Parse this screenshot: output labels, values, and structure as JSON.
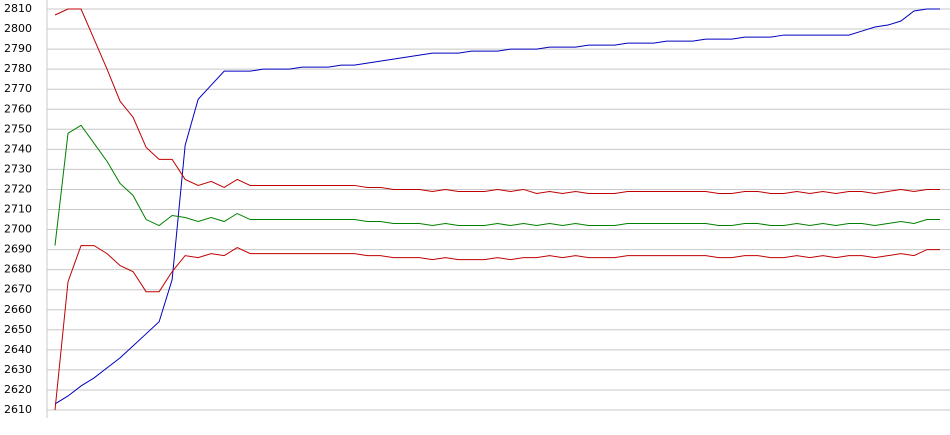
{
  "chart_data": {
    "type": "line",
    "categories": [
      null,
      null,
      null,
      null,
      null,
      null,
      null,
      null,
      null,
      null,
      null,
      null,
      null,
      null,
      null,
      null,
      null,
      null,
      null,
      null,
      null,
      null,
      null,
      null,
      null,
      null,
      null,
      null,
      null,
      null,
      null,
      null,
      null,
      null,
      null,
      null,
      null,
      null,
      null,
      null,
      null,
      null,
      null,
      null,
      null,
      null,
      null,
      null,
      null,
      null,
      null,
      null,
      null,
      null,
      null,
      null,
      null,
      null,
      null,
      null,
      null,
      null,
      null,
      null,
      null,
      null,
      null,
      null,
      null
    ],
    "series": [
      {
        "color": "#0000c0",
        "values": [
          2613,
          2617,
          2622,
          2626,
          2631,
          2636,
          2642,
          2648,
          2654,
          2675,
          2742,
          2765,
          2772,
          2779,
          2779,
          2779,
          2780,
          2780,
          2780,
          2781,
          2781,
          2781,
          2782,
          2782,
          2783,
          2784,
          2785,
          2786,
          2787,
          2788,
          2788,
          2788,
          2789,
          2789,
          2789,
          2790,
          2790,
          2790,
          2791,
          2791,
          2791,
          2792,
          2792,
          2792,
          2793,
          2793,
          2793,
          2794,
          2794,
          2794,
          2795,
          2795,
          2795,
          2796,
          2796,
          2796,
          2797,
          2797,
          2797,
          2797,
          2797,
          2797,
          2799,
          2801,
          2802,
          2804,
          2809,
          2810,
          2810
        ]
      },
      {
        "color": "#c00000",
        "values": [
          2807,
          2810,
          2810,
          2795,
          2780,
          2764,
          2756,
          2741,
          2735,
          2735,
          2725,
          2722,
          2724,
          2721,
          2725,
          2722,
          2722,
          2722,
          2722,
          2722,
          2722,
          2722,
          2722,
          2722,
          2721,
          2721,
          2720,
          2720,
          2720,
          2719,
          2720,
          2719,
          2719,
          2719,
          2720,
          2719,
          2720,
          2718,
          2719,
          2718,
          2719,
          2718,
          2718,
          2718,
          2719,
          2719,
          2719,
          2719,
          2719,
          2719,
          2719,
          2718,
          2718,
          2719,
          2719,
          2718,
          2718,
          2719,
          2718,
          2719,
          2718,
          2719,
          2719,
          2718,
          2719,
          2720,
          2719,
          2720,
          2720
        ]
      },
      {
        "color": "#008000",
        "values": [
          2692,
          2748,
          2752,
          2743,
          2734,
          2723,
          2717,
          2705,
          2702,
          2707,
          2706,
          2704,
          2706,
          2704,
          2708,
          2705,
          2705,
          2705,
          2705,
          2705,
          2705,
          2705,
          2705,
          2705,
          2704,
          2704,
          2703,
          2703,
          2703,
          2702,
          2703,
          2702,
          2702,
          2702,
          2703,
          2702,
          2703,
          2702,
          2703,
          2702,
          2703,
          2702,
          2702,
          2702,
          2703,
          2703,
          2703,
          2703,
          2703,
          2703,
          2703,
          2702,
          2702,
          2703,
          2703,
          2702,
          2702,
          2703,
          2702,
          2703,
          2702,
          2703,
          2703,
          2702,
          2703,
          2704,
          2703,
          2705,
          2705
        ]
      },
      {
        "color": "#c00000",
        "values": [
          2610,
          2674,
          2692,
          2692,
          2688,
          2682,
          2679,
          2669,
          2669,
          2679,
          2687,
          2686,
          2688,
          2687,
          2691,
          2688,
          2688,
          2688,
          2688,
          2688,
          2688,
          2688,
          2688,
          2688,
          2687,
          2687,
          2686,
          2686,
          2686,
          2685,
          2686,
          2685,
          2685,
          2685,
          2686,
          2685,
          2686,
          2686,
          2687,
          2686,
          2687,
          2686,
          2686,
          2686,
          2687,
          2687,
          2687,
          2687,
          2687,
          2687,
          2687,
          2686,
          2686,
          2687,
          2687,
          2686,
          2686,
          2687,
          2686,
          2687,
          2686,
          2687,
          2687,
          2686,
          2687,
          2688,
          2687,
          2690,
          2690
        ]
      }
    ],
    "ylim": [
      2610,
      2810
    ],
    "yticks": [
      2610,
      2620,
      2630,
      2640,
      2650,
      2660,
      2670,
      2680,
      2690,
      2700,
      2710,
      2720,
      2730,
      2740,
      2750,
      2760,
      2770,
      2780,
      2790,
      2800,
      2810
    ],
    "grid": true
  }
}
